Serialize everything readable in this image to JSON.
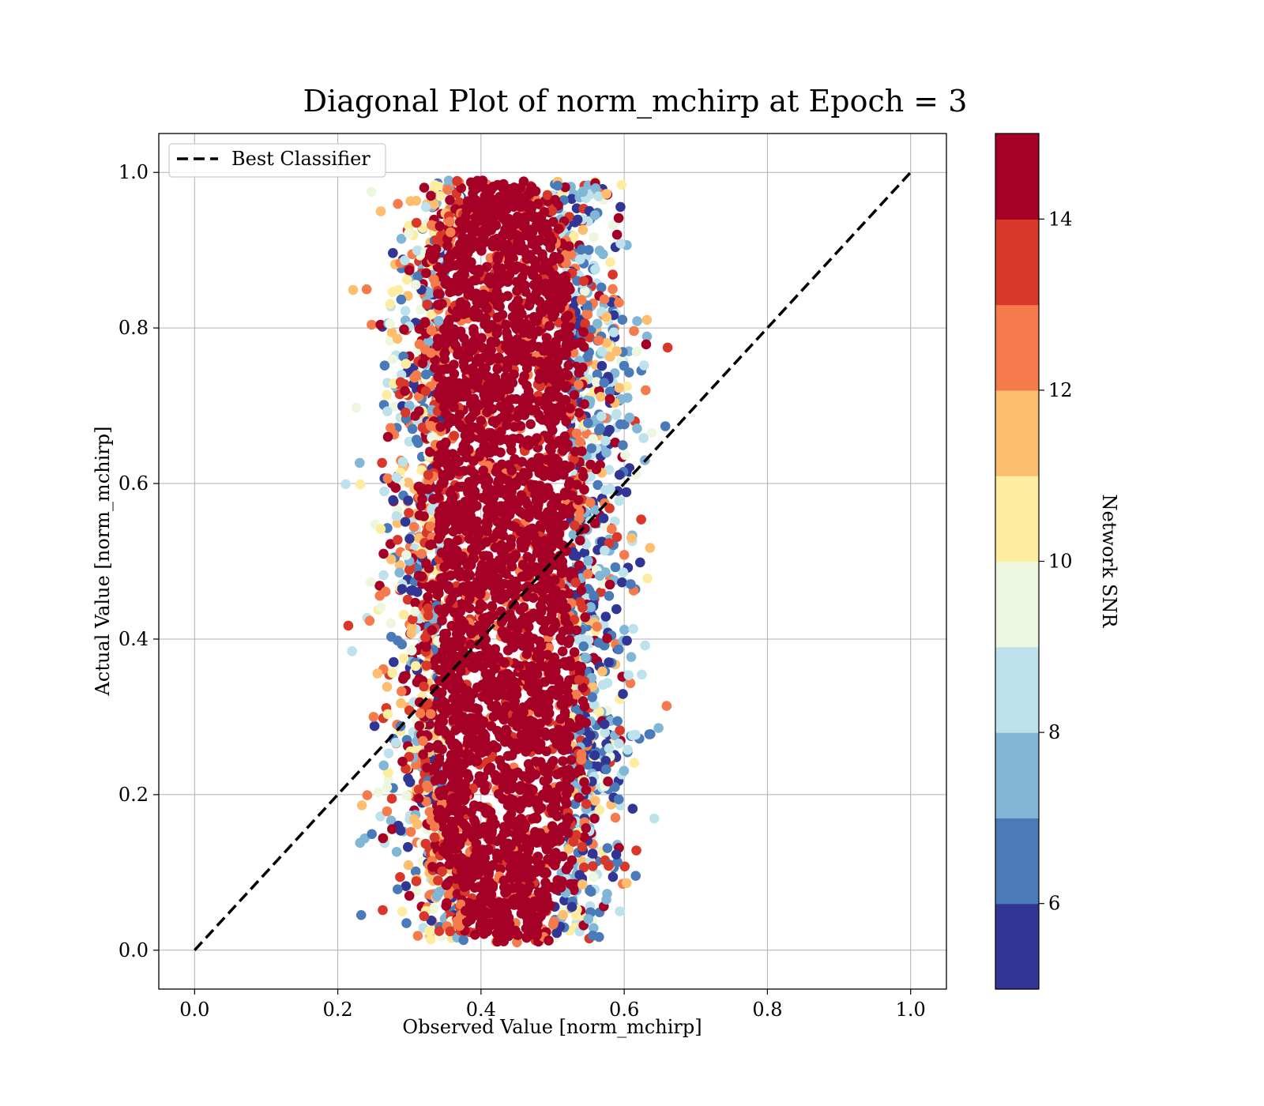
{
  "chart_data": {
    "type": "scatter",
    "title": "Diagonal Plot of norm_mchirp at Epoch = 3",
    "xlabel": "Observed Value [norm_mchirp]",
    "ylabel": "Actual Value [norm_mchirp]",
    "xlim": [
      -0.05,
      1.05
    ],
    "ylim": [
      -0.05,
      1.05
    ],
    "xticks": [
      "0.0",
      "0.2",
      "0.4",
      "0.6",
      "0.8",
      "1.0"
    ],
    "yticks": [
      "0.0",
      "0.2",
      "0.4",
      "0.6",
      "0.8",
      "1.0"
    ],
    "grid": true,
    "legend": {
      "position": "top-left",
      "entries": [
        "Best Classifier"
      ]
    },
    "reference_line": {
      "name": "Best Classifier",
      "style": "dashed",
      "color": "#000000",
      "x": [
        0,
        1
      ],
      "y": [
        0,
        1
      ]
    },
    "colorbar": {
      "label": "Network SNR",
      "range": [
        5,
        15
      ],
      "ticks": [
        "6",
        "8",
        "10",
        "12",
        "14"
      ],
      "colors": [
        "#313695",
        "#4a7ab7",
        "#81b6d6",
        "#bde2ec",
        "#edf7df",
        "#feeda0",
        "#fdbf6f",
        "#f57b4c",
        "#d7382a",
        "#a50026"
      ]
    },
    "scatter_distribution": {
      "x_center": 0.44,
      "x_core_spread": 0.04,
      "x_outlier_range": [
        0.25,
        0.63
      ],
      "y_range": [
        0.0,
        1.0
      ],
      "dominant_color": "#a50026",
      "dominant_snr": "15"
    },
    "series": [
      {
        "values_sample": [
          {
            "x": 0.27,
            "y": 0.66,
            "c": 15
          },
          {
            "x": 0.26,
            "y": 0.95,
            "c": 11
          },
          {
            "x": 0.63,
            "y": 0.72,
            "c": 12
          },
          {
            "x": 0.61,
            "y": 0.53,
            "c": 11
          },
          {
            "x": 0.25,
            "y": 0.3,
            "c": 12
          },
          {
            "x": 0.3,
            "y": 0.07,
            "c": 15
          },
          {
            "x": 0.59,
            "y": 0.92,
            "c": 15
          },
          {
            "x": 0.55,
            "y": 0.04,
            "c": 7
          },
          {
            "x": 0.33,
            "y": 0.97,
            "c": 15
          },
          {
            "x": 0.58,
            "y": 0.47,
            "c": 15
          }
        ]
      }
    ]
  }
}
